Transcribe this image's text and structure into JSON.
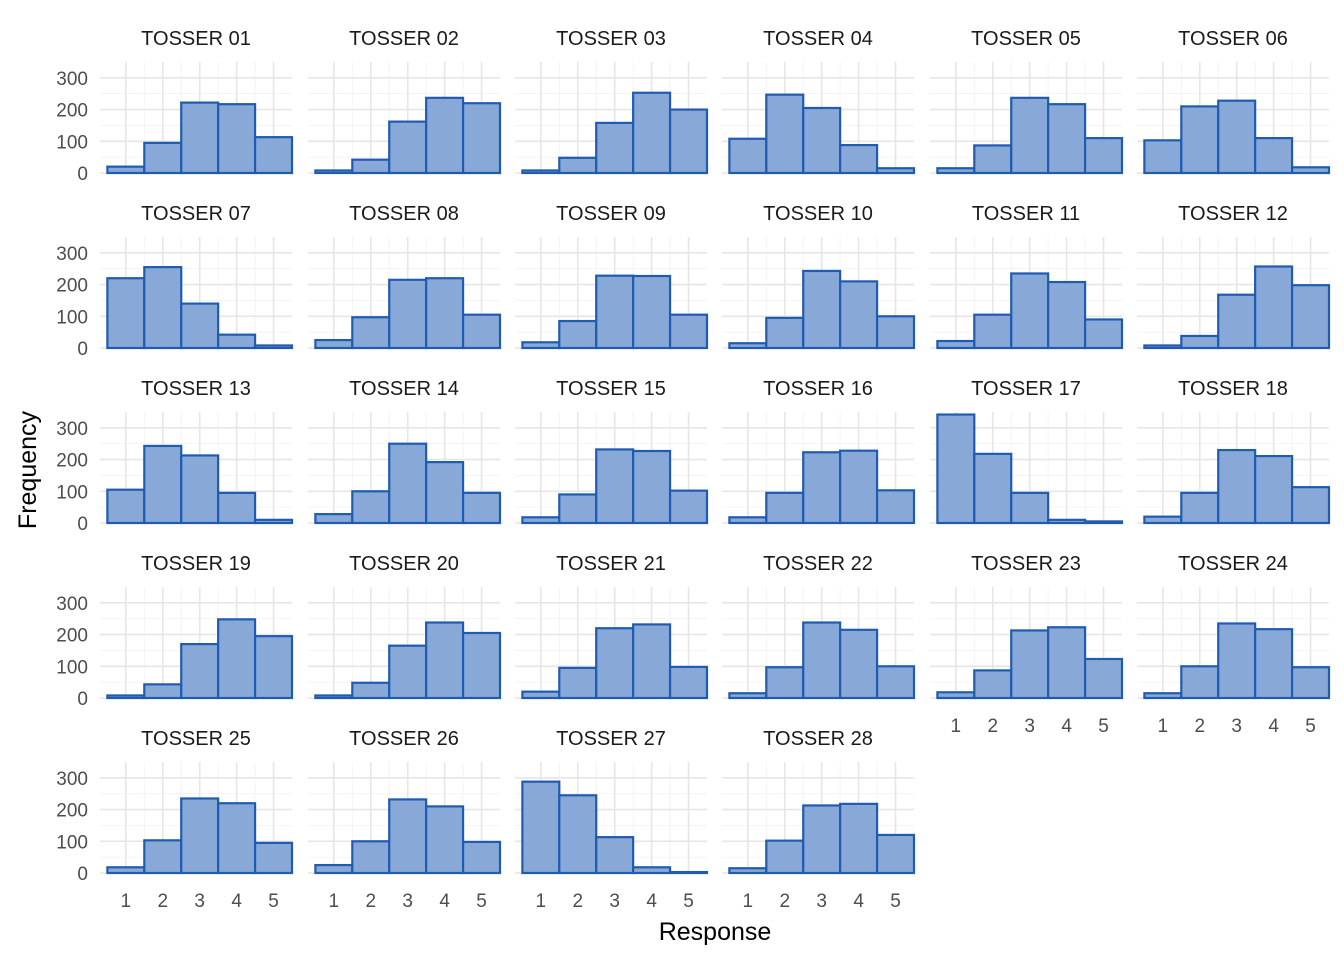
{
  "chart_data": {
    "type": "bar",
    "layout": "facet-grid",
    "xlabel": "Response",
    "ylabel": "Frequency",
    "ylim": [
      0,
      350
    ],
    "y_ticks": [
      0,
      100,
      200,
      300
    ],
    "x_ticks": [
      1,
      2,
      3,
      4,
      5
    ],
    "categories": [
      1,
      2,
      3,
      4,
      5
    ],
    "colors": {
      "fill": "#88a9d8",
      "stroke": "#1f5bb0"
    },
    "grid": true,
    "panels": [
      {
        "label": "TOSSER 01",
        "values": [
          20,
          95,
          222,
          217,
          113
        ]
      },
      {
        "label": "TOSSER 02",
        "values": [
          8,
          42,
          162,
          237,
          220
        ]
      },
      {
        "label": "TOSSER 03",
        "values": [
          8,
          48,
          158,
          253,
          200
        ]
      },
      {
        "label": "TOSSER 04",
        "values": [
          108,
          247,
          205,
          88,
          15
        ]
      },
      {
        "label": "TOSSER 05",
        "values": [
          15,
          87,
          237,
          217,
          110
        ]
      },
      {
        "label": "TOSSER 06",
        "values": [
          103,
          210,
          228,
          110,
          18
        ]
      },
      {
        "label": "TOSSER 07",
        "values": [
          220,
          255,
          140,
          42,
          8
        ]
      },
      {
        "label": "TOSSER 08",
        "values": [
          25,
          97,
          215,
          220,
          105
        ]
      },
      {
        "label": "TOSSER 09",
        "values": [
          18,
          85,
          228,
          227,
          105
        ]
      },
      {
        "label": "TOSSER 10",
        "values": [
          15,
          95,
          243,
          210,
          100
        ]
      },
      {
        "label": "TOSSER 11",
        "values": [
          22,
          105,
          235,
          208,
          90
        ]
      },
      {
        "label": "TOSSER 12",
        "values": [
          8,
          38,
          168,
          257,
          198
        ]
      },
      {
        "label": "TOSSER 13",
        "values": [
          105,
          243,
          213,
          95,
          10
        ]
      },
      {
        "label": "TOSSER 14",
        "values": [
          28,
          100,
          250,
          192,
          95
        ]
      },
      {
        "label": "TOSSER 15",
        "values": [
          18,
          90,
          232,
          227,
          102
        ]
      },
      {
        "label": "TOSSER 16",
        "values": [
          18,
          95,
          223,
          228,
          103
        ]
      },
      {
        "label": "TOSSER 17",
        "values": [
          342,
          218,
          95,
          10,
          5
        ]
      },
      {
        "label": "TOSSER 18",
        "values": [
          20,
          95,
          230,
          211,
          113
        ]
      },
      {
        "label": "TOSSER 19",
        "values": [
          8,
          43,
          170,
          248,
          195
        ]
      },
      {
        "label": "TOSSER 20",
        "values": [
          8,
          48,
          165,
          238,
          205
        ]
      },
      {
        "label": "TOSSER 21",
        "values": [
          20,
          95,
          220,
          232,
          98
        ]
      },
      {
        "label": "TOSSER 22",
        "values": [
          15,
          97,
          238,
          215,
          100
        ]
      },
      {
        "label": "TOSSER 23",
        "values": [
          18,
          87,
          213,
          223,
          123
        ]
      },
      {
        "label": "TOSSER 24",
        "values": [
          15,
          100,
          235,
          217,
          97
        ]
      },
      {
        "label": "TOSSER 25",
        "values": [
          18,
          103,
          235,
          220,
          95
        ]
      },
      {
        "label": "TOSSER 26",
        "values": [
          25,
          100,
          232,
          210,
          98
        ]
      },
      {
        "label": "TOSSER 27",
        "values": [
          288,
          245,
          113,
          18,
          3
        ]
      },
      {
        "label": "TOSSER 28",
        "values": [
          15,
          102,
          213,
          218,
          120
        ]
      }
    ]
  }
}
